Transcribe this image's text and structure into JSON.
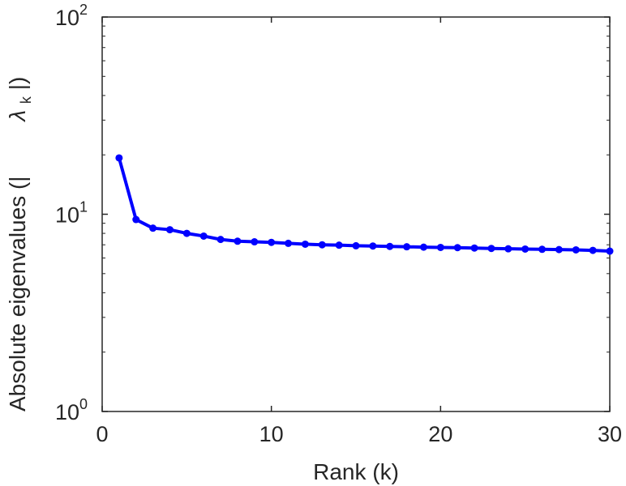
{
  "chart_data": {
    "type": "line",
    "xlabel": "Rank (k)",
    "ylabel": "Absolute eigenvalues (|",
    "ylabel_symbol": "λ",
    "ylabel_subscript": "k",
    "ylabel_close": "|)",
    "xlim": [
      0,
      30
    ],
    "ylim": [
      1,
      100
    ],
    "yscale": "log",
    "grid": false,
    "x_ticks": [
      "0",
      "10",
      "20",
      "30"
    ],
    "y_ticks": [
      {
        "base": "10",
        "exp": "0"
      },
      {
        "base": "10",
        "exp": "1"
      },
      {
        "base": "10",
        "exp": "2"
      }
    ],
    "series": [
      {
        "color": "#0000ff",
        "marker": "circle",
        "x": [
          1,
          2,
          3,
          4,
          5,
          6,
          7,
          8,
          9,
          10,
          11,
          12,
          13,
          14,
          15,
          16,
          17,
          18,
          19,
          20,
          21,
          22,
          23,
          24,
          25,
          26,
          27,
          28,
          29,
          30
        ],
        "y": [
          19.3,
          9.4,
          8.5,
          8.35,
          8.0,
          7.75,
          7.45,
          7.3,
          7.25,
          7.2,
          7.12,
          7.05,
          7.0,
          6.97,
          6.92,
          6.9,
          6.87,
          6.84,
          6.81,
          6.79,
          6.77,
          6.74,
          6.71,
          6.68,
          6.66,
          6.64,
          6.62,
          6.6,
          6.56,
          6.5
        ]
      }
    ]
  }
}
